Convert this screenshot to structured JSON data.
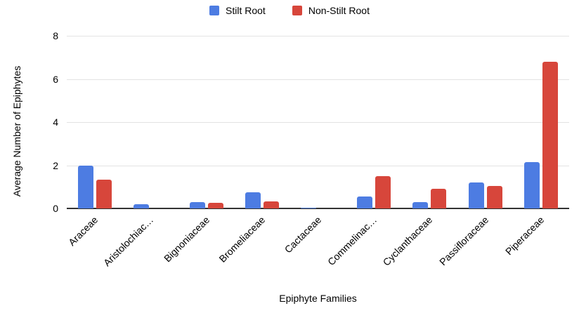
{
  "chart_data": {
    "type": "bar",
    "title": "",
    "xlabel": "Epiphyte Families",
    "ylabel": "Average Number of Epiphytes",
    "categories": [
      "Araceae",
      "Aristolochiac…",
      "Bignoniaceae",
      "Bromeliaceae",
      "Cactaceae",
      "Commelinac…",
      "Cyclanthaceae",
      "Passifloraceae",
      "Piperaceae"
    ],
    "series": [
      {
        "name": "Stilt Root",
        "color": "#4d7ce2",
        "values": [
          2.0,
          0.2,
          0.3,
          0.75,
          0.05,
          0.55,
          0.3,
          1.2,
          2.15
        ]
      },
      {
        "name": "Non-Stilt Root",
        "color": "#d7463b",
        "values": [
          1.33,
          0,
          0.25,
          0.33,
          0,
          1.5,
          0.9,
          1.05,
          6.8
        ]
      }
    ],
    "ylim": [
      0,
      8
    ],
    "yticks": [
      0,
      2,
      4,
      6,
      8
    ],
    "grid": true,
    "legend_position": "top",
    "colors": {
      "gridline": "#e3e3e3",
      "axis": "#333333",
      "text": "#000000",
      "background": "#ffffff"
    }
  }
}
